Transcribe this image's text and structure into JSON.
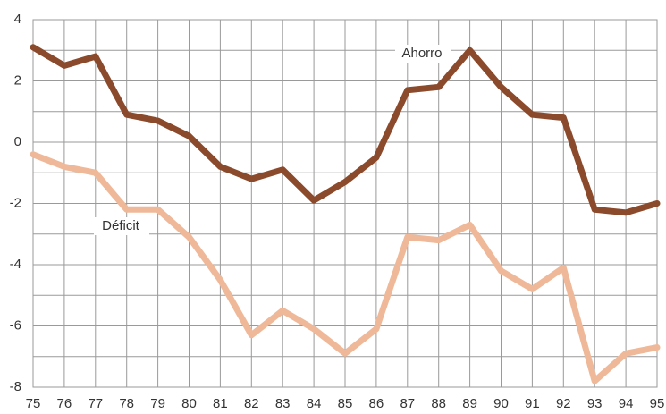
{
  "chart_data": {
    "type": "line",
    "categories": [
      "75",
      "76",
      "77",
      "78",
      "79",
      "80",
      "81",
      "82",
      "83",
      "84",
      "85",
      "86",
      "87",
      "88",
      "89",
      "90",
      "91",
      "92",
      "93",
      "94",
      "95"
    ],
    "series": [
      {
        "name": "Ahorro",
        "color": "#8b4a2b",
        "values": [
          3.1,
          2.5,
          2.8,
          0.9,
          0.7,
          0.2,
          -0.8,
          -1.2,
          -0.9,
          -1.9,
          -1.3,
          -0.5,
          1.7,
          1.8,
          3.0,
          1.8,
          0.9,
          0.8,
          -2.2,
          -2.3,
          -2.0
        ]
      },
      {
        "name": "Déficit",
        "color": "#efb898",
        "values": [
          -0.4,
          -0.8,
          -1.0,
          -2.2,
          -2.2,
          -3.1,
          -4.5,
          -6.3,
          -5.5,
          -6.1,
          -6.9,
          -6.1,
          -3.1,
          -3.2,
          -2.7,
          -4.2,
          -4.8,
          -4.1,
          -7.8,
          -6.9,
          -6.7
        ]
      }
    ],
    "ylim": [
      -8,
      4
    ],
    "yticks": [
      -8,
      -6,
      -4,
      -2,
      0,
      2,
      4
    ],
    "yminor": [
      -7,
      -5,
      -3,
      -1,
      1,
      3
    ],
    "grid": true
  }
}
